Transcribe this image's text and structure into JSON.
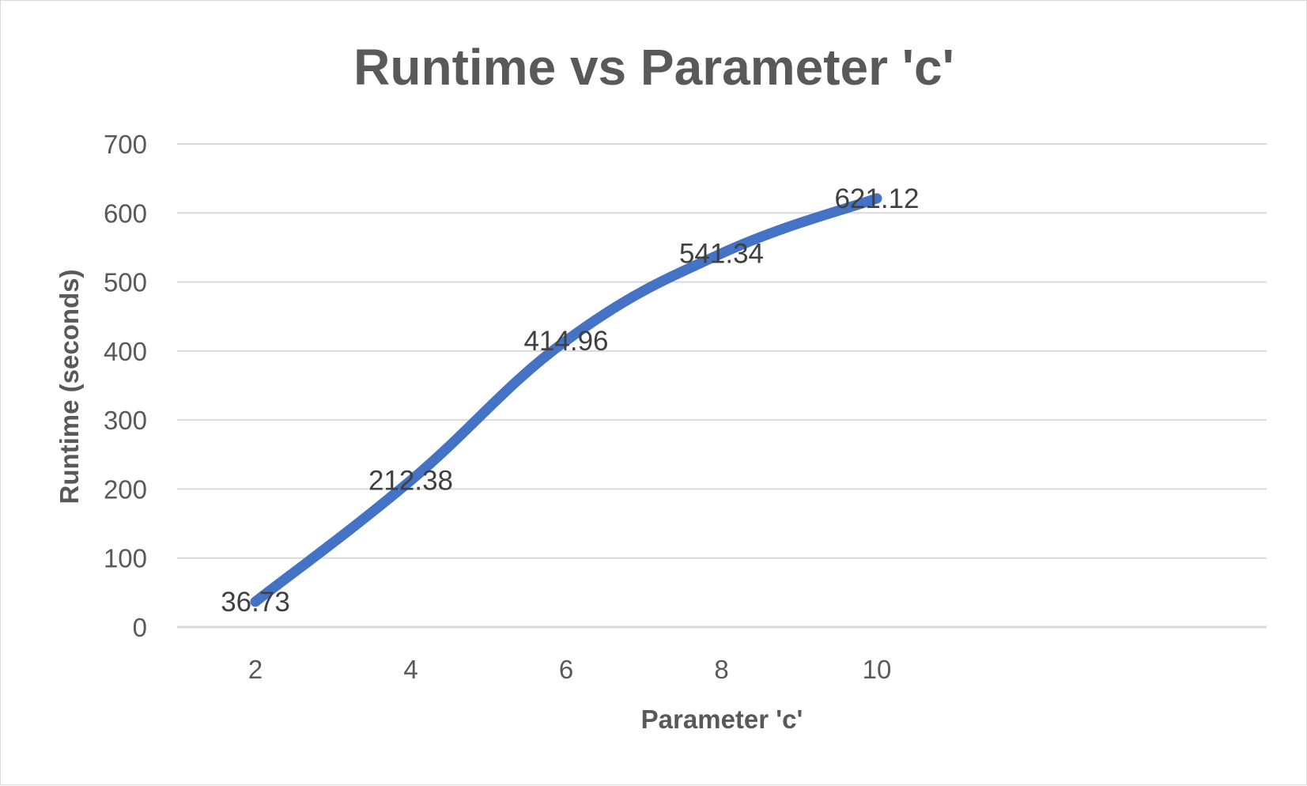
{
  "chart_data": {
    "type": "line",
    "title": "Runtime vs Parameter 'c'",
    "xlabel": "Parameter 'c'",
    "ylabel": "Runtime (seconds)",
    "categories": [
      "2",
      "4",
      "6",
      "8",
      "10"
    ],
    "series": [
      {
        "values": [
          36.73,
          212.38,
          414.96,
          541.34,
          621.12
        ],
        "color": "#4472c4"
      }
    ],
    "data_labels": [
      "36.73",
      "212.38",
      "414.96",
      "541.34",
      "621.12"
    ],
    "y_ticks": [
      "0",
      "100",
      "200",
      "300",
      "400",
      "500",
      "600",
      "700"
    ],
    "ylim": [
      0,
      700
    ],
    "grid": true,
    "legend": "none",
    "colors": {
      "gridline": "#d9d9d9",
      "text": "#595959",
      "label": "#404040"
    }
  }
}
